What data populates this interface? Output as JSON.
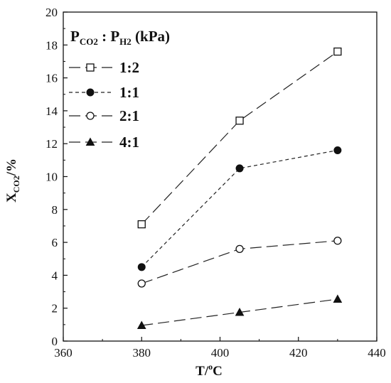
{
  "chart_data": {
    "type": "line",
    "xlabel": {
      "main": "T/",
      "sup": "o",
      "tail": "C"
    },
    "ylabel": {
      "main": "X",
      "sub": "CO2",
      "tail": "/%"
    },
    "xlim": [
      360,
      440
    ],
    "ylim": [
      0,
      20
    ],
    "x_ticks": [
      "360",
      "380",
      "400",
      "420",
      "440"
    ],
    "y_ticks": [
      "0",
      "2",
      "4",
      "6",
      "8",
      "10",
      "12",
      "14",
      "16",
      "18",
      "20"
    ],
    "grid": false,
    "legend_position": "top-left",
    "legend_title": {
      "p1": "P",
      "p1_sub": "CO2",
      "sep": " : ",
      "p2": "P",
      "p2_sub": "H2",
      "unit": " (kPa)"
    },
    "series": [
      {
        "name": "1:2",
        "marker": "open-square",
        "dash": "long-dash",
        "x": [
          380,
          405,
          430
        ],
        "values": [
          7.1,
          13.4,
          17.6
        ]
      },
      {
        "name": "1:1",
        "marker": "filled-circle",
        "dash": "short-dash",
        "x": [
          380,
          405,
          430
        ],
        "values": [
          4.5,
          10.5,
          11.6
        ]
      },
      {
        "name": "2:1",
        "marker": "open-circle",
        "dash": "long-dash",
        "x": [
          380,
          405,
          430
        ],
        "values": [
          3.5,
          5.6,
          6.1
        ]
      },
      {
        "name": "4:1",
        "marker": "filled-triangle",
        "dash": "long-dash",
        "x": [
          380,
          405,
          430
        ],
        "values": [
          0.95,
          1.75,
          2.55
        ]
      }
    ]
  }
}
